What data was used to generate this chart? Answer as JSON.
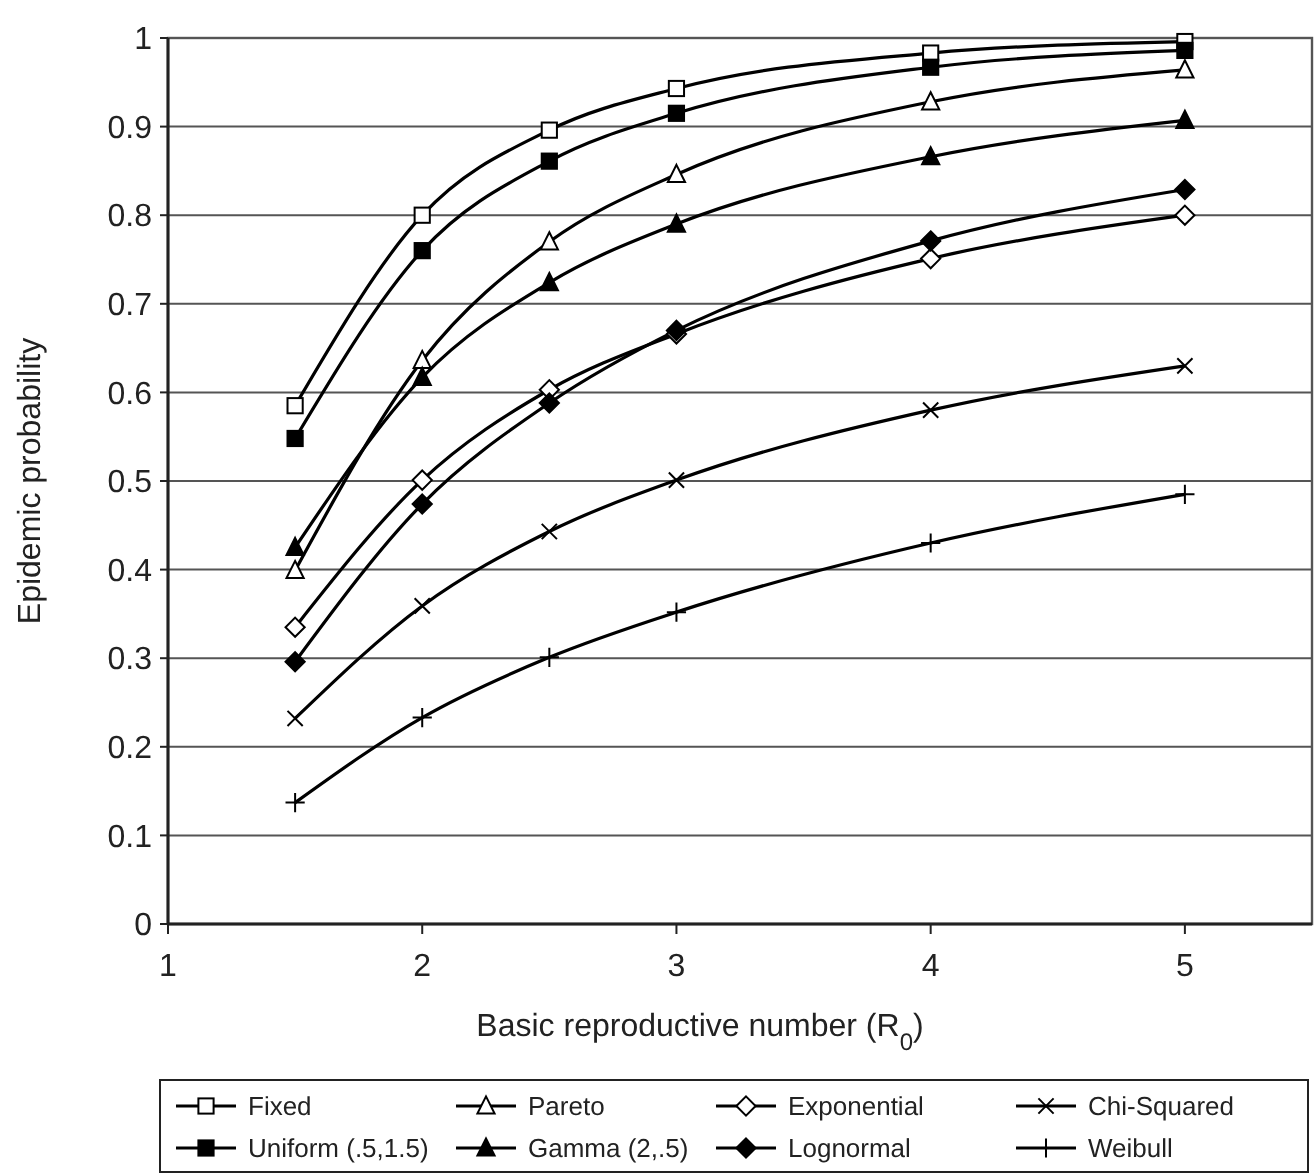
{
  "chart_data": {
    "type": "line",
    "xlabel": "Basic reproductive number (R$_{0}$)",
    "ylabel": "Epidemic probability",
    "x": [
      1.5,
      2,
      2.5,
      3,
      4,
      5
    ],
    "xlim": [
      1,
      5.5
    ],
    "xticks": [
      1,
      2,
      3,
      4,
      5
    ],
    "ylim": [
      0,
      1
    ],
    "yticks": [
      0,
      0.1,
      0.2,
      0.3,
      0.4,
      0.5,
      0.6,
      0.7,
      0.8,
      0.9,
      1
    ],
    "grid": "y",
    "legend": "bottom",
    "line_style": "solid",
    "series": [
      {
        "name": "Fixed",
        "color": "#000000",
        "marker": "square-open",
        "values": [
          0.585,
          0.8,
          0.896,
          0.943,
          0.983,
          0.996
        ]
      },
      {
        "name": "Uniform (.5,1.5)",
        "color": "#000000",
        "marker": "square",
        "values": [
          0.548,
          0.76,
          0.861,
          0.915,
          0.967,
          0.986
        ]
      },
      {
        "name": "Pareto",
        "color": "#000000",
        "marker": "triangle-open",
        "values": [
          0.399,
          0.636,
          0.77,
          0.846,
          0.928,
          0.964
        ]
      },
      {
        "name": "Gamma (2,.5)",
        "color": "#000000",
        "marker": "triangle",
        "values": [
          0.425,
          0.617,
          0.724,
          0.79,
          0.866,
          0.907
        ]
      },
      {
        "name": "Exponential",
        "color": "#000000",
        "marker": "diamond-open",
        "values": [
          0.335,
          0.501,
          0.603,
          0.666,
          0.751,
          0.8
        ]
      },
      {
        "name": "Lognormal",
        "color": "#000000",
        "marker": "diamond",
        "values": [
          0.296,
          0.474,
          0.588,
          0.67,
          0.771,
          0.829
        ]
      },
      {
        "name": "Chi-Squared",
        "color": "#000000",
        "marker": "cross",
        "values": [
          0.232,
          0.359,
          0.443,
          0.501,
          0.58,
          0.63
        ]
      },
      {
        "name": "Weibull",
        "color": "#000000",
        "marker": "plus",
        "values": [
          0.137,
          0.233,
          0.301,
          0.352,
          0.43,
          0.485
        ]
      }
    ]
  }
}
